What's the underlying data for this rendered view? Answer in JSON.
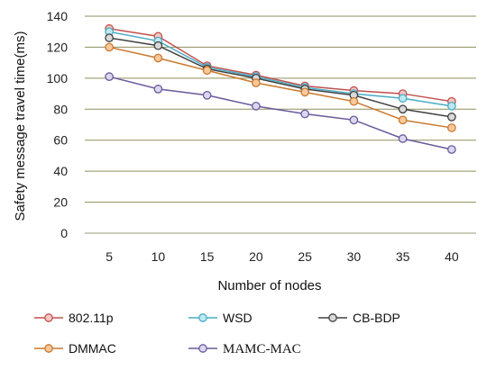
{
  "chart_data": {
    "type": "line",
    "xlabel": "Number  of nodes",
    "ylabel": "Safety message travel time(ms)",
    "categories": [
      "5",
      "10",
      "15",
      "20",
      "25",
      "30",
      "35",
      "40"
    ],
    "ylim": [
      0,
      140
    ],
    "yticks": [
      0,
      20,
      40,
      60,
      80,
      100,
      120,
      140
    ],
    "grid": "horizontal",
    "legend_position": "bottom",
    "series": [
      {
        "name": "802.11p",
        "color": "#c0504d",
        "marker_fill": "#f4c7c3",
        "values": [
          132,
          127,
          108,
          102,
          95,
          92,
          90,
          85
        ]
      },
      {
        "name": "WSD",
        "color": "#4aacc6",
        "marker_fill": "#bfe9f2",
        "values": [
          130,
          124,
          107,
          101,
          94,
          90,
          87,
          82
        ]
      },
      {
        "name": "CB-BDP",
        "color": "#404040",
        "marker_fill": "#d9d9d9",
        "values": [
          126,
          121,
          106,
          100,
          93,
          89,
          80,
          75
        ]
      },
      {
        "name": "DMMAC",
        "color": "#c9782f",
        "marker_fill": "#f9c89a",
        "values": [
          120,
          113,
          105,
          97,
          91,
          85,
          73,
          68
        ]
      },
      {
        "name": "MAMC-MAC",
        "color": "#6a5a9c",
        "marker_fill": "#ddd6ef",
        "values": [
          101,
          93,
          89,
          82,
          77,
          73,
          61,
          54
        ]
      }
    ]
  }
}
